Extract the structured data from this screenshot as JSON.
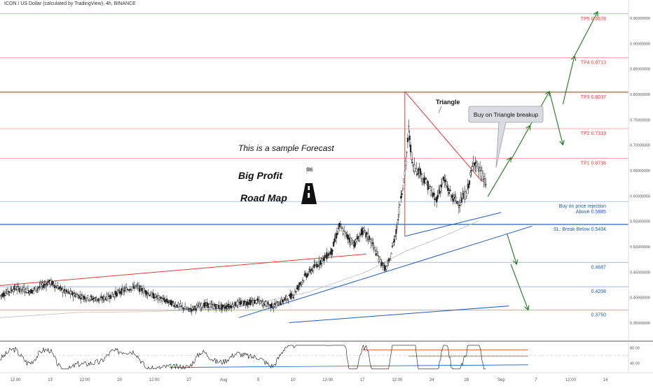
{
  "header": {
    "symbol_title": "ICON / US Dollar (calculated by TradingView), 4h, BINANCE"
  },
  "annotations": {
    "sample_forecast": "This is a sample Forecast",
    "big_profit": "Big Profit",
    "road_map": "Road Map",
    "triangle": "Triangle",
    "buy_callout": "Buy on Triangle breakup",
    "buy_rejection_line1": "Buy on price rejection",
    "buy_rejection_line2": "Above 0.5885",
    "sl_label": "SL: Break Below 0.5434"
  },
  "colors": {
    "red_line": "#e53935",
    "blue_line": "#1e5bbf",
    "green_arrow": "#1b7a1b",
    "candle": "#222222",
    "ma": "#bdbdbd"
  },
  "chart_data": {
    "type": "candlestick",
    "title": "ICON / US Dollar (calculated by TradingView), 4h, BINANCE",
    "y_axis": {
      "scale": "linear",
      "range": [
        0.315,
        0.985
      ],
      "ticks": [
        "0.95000000",
        "0.90000000",
        "0.85000000",
        "0.80000000",
        "0.75000000",
        "0.70000000",
        "0.65000000",
        "0.60000000",
        "0.55000000",
        "0.50000000",
        "0.45000000",
        "0.40000000",
        "0.35000000"
      ],
      "tick_values": [
        0.95,
        0.9,
        0.85,
        0.8,
        0.75,
        0.7,
        0.65,
        0.6,
        0.55,
        0.5,
        0.45,
        0.4,
        0.35
      ]
    },
    "x_axis": {
      "ticks": [
        "12:00",
        "13",
        "12:00",
        "20",
        "12:00",
        "27",
        "Aug",
        "5",
        "10",
        "12:00",
        "17",
        "12:00",
        "24",
        "28",
        "Sep",
        "7",
        "12:00",
        "14"
      ],
      "tick_index": [
        4,
        13,
        22,
        31,
        40,
        49,
        58,
        67,
        76,
        85,
        94,
        103,
        112,
        121,
        130,
        139,
        148,
        157
      ]
    },
    "price_points": [
      [
        0,
        0.403
      ],
      [
        4,
        0.418
      ],
      [
        8,
        0.412
      ],
      [
        13,
        0.43
      ],
      [
        17,
        0.41
      ],
      [
        22,
        0.4
      ],
      [
        26,
        0.395
      ],
      [
        31,
        0.41
      ],
      [
        35,
        0.422
      ],
      [
        40,
        0.402
      ],
      [
        44,
        0.39
      ],
      [
        49,
        0.375
      ],
      [
        53,
        0.385
      ],
      [
        58,
        0.38
      ],
      [
        62,
        0.388
      ],
      [
        67,
        0.392
      ],
      [
        71,
        0.382
      ],
      [
        76,
        0.405
      ],
      [
        79,
        0.44
      ],
      [
        83,
        0.47
      ],
      [
        86,
        0.49
      ],
      [
        88,
        0.54
      ],
      [
        90,
        0.52
      ],
      [
        92,
        0.505
      ],
      [
        94,
        0.53
      ],
      [
        96,
        0.515
      ],
      [
        98,
        0.48
      ],
      [
        100,
        0.455
      ],
      [
        101,
        0.47
      ],
      [
        103,
        0.54
      ],
      [
        104,
        0.6
      ],
      [
        105,
        0.64
      ],
      [
        106,
        0.73
      ],
      [
        107,
        0.66
      ],
      [
        109,
        0.645
      ],
      [
        111,
        0.62
      ],
      [
        113,
        0.59
      ],
      [
        115,
        0.632
      ],
      [
        117,
        0.6
      ],
      [
        119,
        0.585
      ],
      [
        121,
        0.605
      ],
      [
        123,
        0.67
      ],
      [
        125,
        0.64
      ],
      [
        126,
        0.625
      ]
    ],
    "levels": [
      {
        "label": "TP5 0.9578",
        "value": 0.9578,
        "color": "red"
      },
      {
        "label": "TP4 0.8713",
        "value": 0.8713,
        "color": "red"
      },
      {
        "label": "TP3 0.8037",
        "value": 0.8037,
        "color": "red"
      },
      {
        "label": "TP2 0.7319",
        "value": 0.7319,
        "color": "red"
      },
      {
        "label": "TP1 0.6736",
        "value": 0.6736,
        "color": "red"
      },
      {
        "label": "0.5885",
        "value": 0.5885,
        "color": "blue"
      },
      {
        "label": "0.5434",
        "value": 0.5434,
        "color": "blue"
      },
      {
        "label": "0.4687",
        "value": 0.4687,
        "color": "blue"
      },
      {
        "label": "0.4208",
        "value": 0.4208,
        "color": "blue"
      },
      {
        "label": "0.3750",
        "value": 0.375,
        "color": "blue"
      }
    ],
    "oscillator": {
      "ticks": [
        "80.00",
        "40.00"
      ],
      "tick_values": [
        80,
        40
      ],
      "range": [
        20,
        95
      ]
    },
    "grid": false,
    "legend": "none"
  }
}
